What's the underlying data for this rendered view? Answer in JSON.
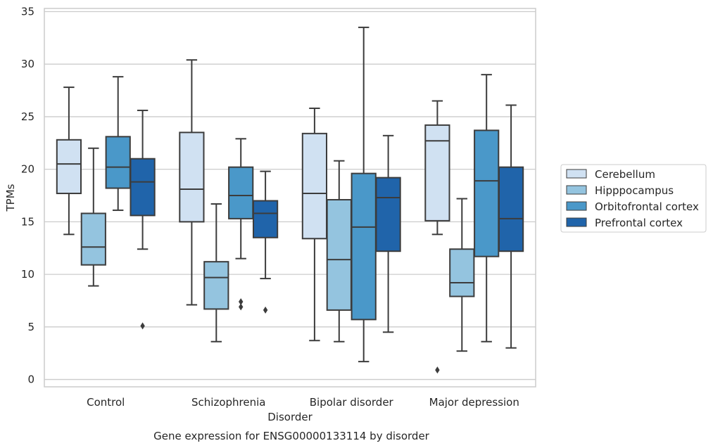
{
  "chart_data": {
    "type": "box",
    "xlabel": "Disorder",
    "ylabel": "TPMs",
    "caption": "Gene expression for ENSG00000133114 by disorder",
    "categories": [
      "Control",
      "Schizophrenia",
      "Bipolar disorder",
      "Major depression"
    ],
    "ylim": [
      -0.7,
      35.3
    ],
    "yticks": [
      0,
      5,
      10,
      15,
      20,
      25,
      30,
      35
    ],
    "grid": true,
    "legend_position": "right",
    "series": [
      {
        "name": "Cerebellum",
        "color": "#d0e1f2",
        "boxes": [
          {
            "whislo": 13.8,
            "q1": 17.7,
            "median": 20.5,
            "q3": 22.8,
            "whishi": 27.8,
            "fliers": []
          },
          {
            "whislo": 7.1,
            "q1": 15.0,
            "median": 18.1,
            "q3": 23.5,
            "whishi": 30.4,
            "fliers": []
          },
          {
            "whislo": 3.7,
            "q1": 13.4,
            "median": 17.7,
            "q3": 23.4,
            "whishi": 25.8,
            "fliers": []
          },
          {
            "whislo": 13.8,
            "q1": 15.1,
            "median": 22.7,
            "q3": 24.2,
            "whishi": 26.5,
            "fliers": [
              0.9
            ]
          }
        ]
      },
      {
        "name": "Hipppocampus",
        "color": "#94c4df",
        "boxes": [
          {
            "whislo": 8.9,
            "q1": 10.9,
            "median": 12.6,
            "q3": 15.8,
            "whishi": 22.0,
            "fliers": []
          },
          {
            "whislo": 3.6,
            "q1": 6.7,
            "median": 9.7,
            "q3": 11.2,
            "whishi": 16.7,
            "fliers": []
          },
          {
            "whislo": 3.6,
            "q1": 6.6,
            "median": 11.4,
            "q3": 17.1,
            "whishi": 20.8,
            "fliers": []
          },
          {
            "whislo": 2.7,
            "q1": 7.9,
            "median": 9.2,
            "q3": 12.4,
            "whishi": 17.2,
            "fliers": []
          }
        ]
      },
      {
        "name": "Orbitofrontal cortex",
        "color": "#4a98c9",
        "boxes": [
          {
            "whislo": 16.1,
            "q1": 18.2,
            "median": 20.2,
            "q3": 23.1,
            "whishi": 28.8,
            "fliers": []
          },
          {
            "whislo": 11.5,
            "q1": 15.3,
            "median": 17.5,
            "q3": 20.2,
            "whishi": 22.9,
            "fliers": [
              7.4,
              6.9
            ]
          },
          {
            "whislo": 1.7,
            "q1": 5.7,
            "median": 14.5,
            "q3": 19.6,
            "whishi": 33.5,
            "fliers": []
          },
          {
            "whislo": 3.6,
            "q1": 11.7,
            "median": 18.9,
            "q3": 23.7,
            "whishi": 29.0,
            "fliers": []
          }
        ]
      },
      {
        "name": "Prefrontal cortex",
        "color": "#2064aa",
        "boxes": [
          {
            "whislo": 12.4,
            "q1": 15.6,
            "median": 18.8,
            "q3": 21.0,
            "whishi": 25.6,
            "fliers": [
              5.1
            ]
          },
          {
            "whislo": 9.6,
            "q1": 13.5,
            "median": 15.8,
            "q3": 17.0,
            "whishi": 19.8,
            "fliers": [
              6.6
            ]
          },
          {
            "whislo": 4.5,
            "q1": 12.2,
            "median": 17.3,
            "q3": 19.2,
            "whishi": 23.2,
            "fliers": []
          },
          {
            "whislo": 3.0,
            "q1": 12.2,
            "median": 15.3,
            "q3": 20.2,
            "whishi": 26.1,
            "fliers": []
          }
        ]
      }
    ]
  }
}
